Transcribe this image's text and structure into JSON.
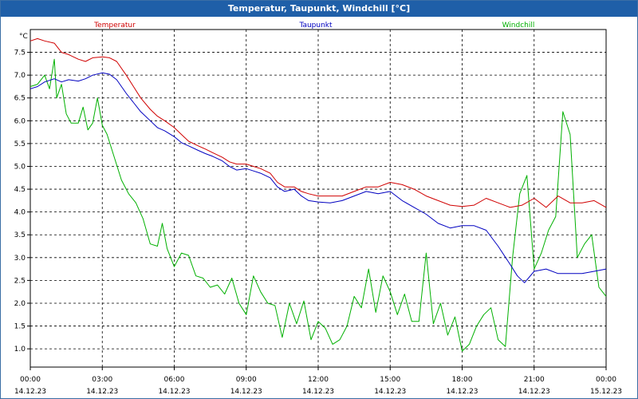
{
  "window": {
    "title": "Temperatur, Taupunkt, Windchill [°C]"
  },
  "chart_data": {
    "type": "line",
    "title": "Temperatur, Taupunkt, Windchill [°C]",
    "ylabel": "°C",
    "ylim": [
      0.6,
      8.0
    ],
    "yticks": [
      "1.0",
      "1.5",
      "2.0",
      "2.5",
      "3.0",
      "3.5",
      "4.0",
      "4.5",
      "5.0",
      "5.5",
      "6.0",
      "6.5",
      "7.0",
      "7.5"
    ],
    "xlim": [
      0,
      24
    ],
    "xticks": [
      {
        "time": "00:00",
        "date": "14.12.23"
      },
      {
        "time": "03:00",
        "date": "14.12.23"
      },
      {
        "time": "06:00",
        "date": "14.12.23"
      },
      {
        "time": "09:00",
        "date": "14.12.23"
      },
      {
        "time": "12:00",
        "date": "14.12.23"
      },
      {
        "time": "15:00",
        "date": "14.12.23"
      },
      {
        "time": "18:00",
        "date": "14.12.23"
      },
      {
        "time": "21:00",
        "date": "14.12.23"
      },
      {
        "time": "00:00",
        "date": "15.12.23"
      }
    ],
    "grid": true,
    "colors": {
      "Temperatur": "#d00000",
      "Taupunkt": "#0000c0",
      "Windchill": "#00b000"
    },
    "series": [
      {
        "name": "Temperatur",
        "x": [
          0,
          0.3,
          0.6,
          1.0,
          1.3,
          1.6,
          2.0,
          2.3,
          2.6,
          3.0,
          3.3,
          3.6,
          4.0,
          4.3,
          4.6,
          5.0,
          5.3,
          5.6,
          6.0,
          6.3,
          6.6,
          7.0,
          7.3,
          7.6,
          8.0,
          8.3,
          8.6,
          9.0,
          9.3,
          9.6,
          10.0,
          10.3,
          10.6,
          11.0,
          11.3,
          11.6,
          12.0,
          12.5,
          13.0,
          13.5,
          14.0,
          14.5,
          15.0,
          15.5,
          16.0,
          16.5,
          17.0,
          17.5,
          18.0,
          18.5,
          19.0,
          19.5,
          20.0,
          20.5,
          21.0,
          21.5,
          22.0,
          22.5,
          23.0,
          23.5,
          24.0
        ],
        "y": [
          7.75,
          7.8,
          7.75,
          7.7,
          7.5,
          7.45,
          7.35,
          7.3,
          7.38,
          7.4,
          7.38,
          7.3,
          7.0,
          6.75,
          6.5,
          6.25,
          6.1,
          6.0,
          5.85,
          5.7,
          5.55,
          5.45,
          5.38,
          5.3,
          5.2,
          5.1,
          5.05,
          5.05,
          5.0,
          4.95,
          4.85,
          4.65,
          4.55,
          4.55,
          4.45,
          4.4,
          4.35,
          4.35,
          4.35,
          4.45,
          4.55,
          4.55,
          4.65,
          4.6,
          4.5,
          4.35,
          4.25,
          4.15,
          4.12,
          4.15,
          4.3,
          4.2,
          4.1,
          4.15,
          4.3,
          4.1,
          4.35,
          4.2,
          4.2,
          4.25,
          4.1
        ]
      },
      {
        "name": "Taupunkt",
        "x": [
          0,
          0.3,
          0.6,
          1.0,
          1.3,
          1.6,
          2.0,
          2.3,
          2.6,
          3.0,
          3.3,
          3.6,
          4.0,
          4.3,
          4.6,
          5.0,
          5.3,
          5.6,
          6.0,
          6.3,
          6.6,
          7.0,
          7.3,
          7.6,
          8.0,
          8.3,
          8.6,
          9.0,
          9.3,
          9.6,
          10.0,
          10.3,
          10.6,
          11.0,
          11.3,
          11.6,
          12.0,
          12.5,
          13.0,
          13.5,
          14.0,
          14.5,
          15.0,
          15.5,
          16.0,
          16.5,
          17.0,
          17.5,
          18.0,
          18.5,
          19.0,
          19.5,
          20.0,
          20.3,
          20.6,
          21.0,
          21.5,
          22.0,
          22.5,
          23.0,
          23.5,
          24.0
        ],
        "y": [
          6.7,
          6.75,
          6.85,
          6.92,
          6.85,
          6.9,
          6.87,
          6.92,
          7.0,
          7.05,
          7.02,
          6.9,
          6.6,
          6.4,
          6.2,
          6.0,
          5.85,
          5.78,
          5.65,
          5.52,
          5.45,
          5.35,
          5.28,
          5.22,
          5.12,
          5.0,
          4.92,
          4.95,
          4.9,
          4.85,
          4.75,
          4.55,
          4.45,
          4.5,
          4.35,
          4.25,
          4.22,
          4.2,
          4.25,
          4.35,
          4.45,
          4.4,
          4.45,
          4.25,
          4.1,
          3.95,
          3.75,
          3.65,
          3.7,
          3.7,
          3.6,
          3.25,
          2.85,
          2.6,
          2.45,
          2.7,
          2.75,
          2.65,
          2.65,
          2.65,
          2.7,
          2.75
        ]
      },
      {
        "name": "Windchill",
        "x": [
          0,
          0.3,
          0.6,
          0.8,
          1.0,
          1.1,
          1.3,
          1.5,
          1.7,
          2.0,
          2.2,
          2.4,
          2.6,
          2.8,
          3.0,
          3.2,
          3.5,
          3.8,
          4.1,
          4.4,
          4.7,
          5.0,
          5.3,
          5.5,
          5.7,
          6.0,
          6.3,
          6.6,
          6.9,
          7.2,
          7.5,
          7.8,
          8.1,
          8.4,
          8.7,
          9.0,
          9.3,
          9.6,
          9.9,
          10.2,
          10.5,
          10.8,
          11.1,
          11.4,
          11.7,
          12.0,
          12.3,
          12.6,
          12.9,
          13.2,
          13.5,
          13.8,
          14.1,
          14.4,
          14.7,
          15.0,
          15.3,
          15.6,
          15.9,
          16.2,
          16.5,
          16.8,
          17.1,
          17.4,
          17.7,
          18.0,
          18.3,
          18.6,
          18.9,
          19.2,
          19.5,
          19.8,
          20.1,
          20.4,
          20.7,
          21.0,
          21.3,
          21.6,
          21.9,
          22.2,
          22.5,
          22.8,
          23.1,
          23.4,
          23.7,
          24.0
        ],
        "y": [
          6.75,
          6.8,
          7.0,
          6.7,
          7.35,
          6.5,
          6.8,
          6.15,
          5.95,
          5.95,
          6.3,
          5.8,
          5.95,
          6.5,
          5.9,
          5.7,
          5.2,
          4.7,
          4.4,
          4.2,
          3.85,
          3.3,
          3.25,
          3.75,
          3.2,
          2.8,
          3.1,
          3.05,
          2.6,
          2.55,
          2.35,
          2.4,
          2.2,
          2.55,
          2.0,
          1.75,
          2.6,
          2.25,
          2.0,
          1.95,
          1.25,
          2.0,
          1.55,
          2.05,
          1.2,
          1.6,
          1.45,
          1.1,
          1.2,
          1.5,
          2.15,
          1.9,
          2.75,
          1.8,
          2.6,
          2.25,
          1.75,
          2.2,
          1.6,
          1.6,
          3.1,
          1.55,
          2.0,
          1.3,
          1.7,
          0.95,
          1.1,
          1.5,
          1.75,
          1.9,
          1.2,
          1.05,
          3.0,
          4.4,
          4.8,
          2.75,
          3.1,
          3.6,
          3.9,
          6.2,
          5.7,
          3.0,
          3.3,
          3.5,
          2.35,
          2.15
        ]
      }
    ]
  }
}
